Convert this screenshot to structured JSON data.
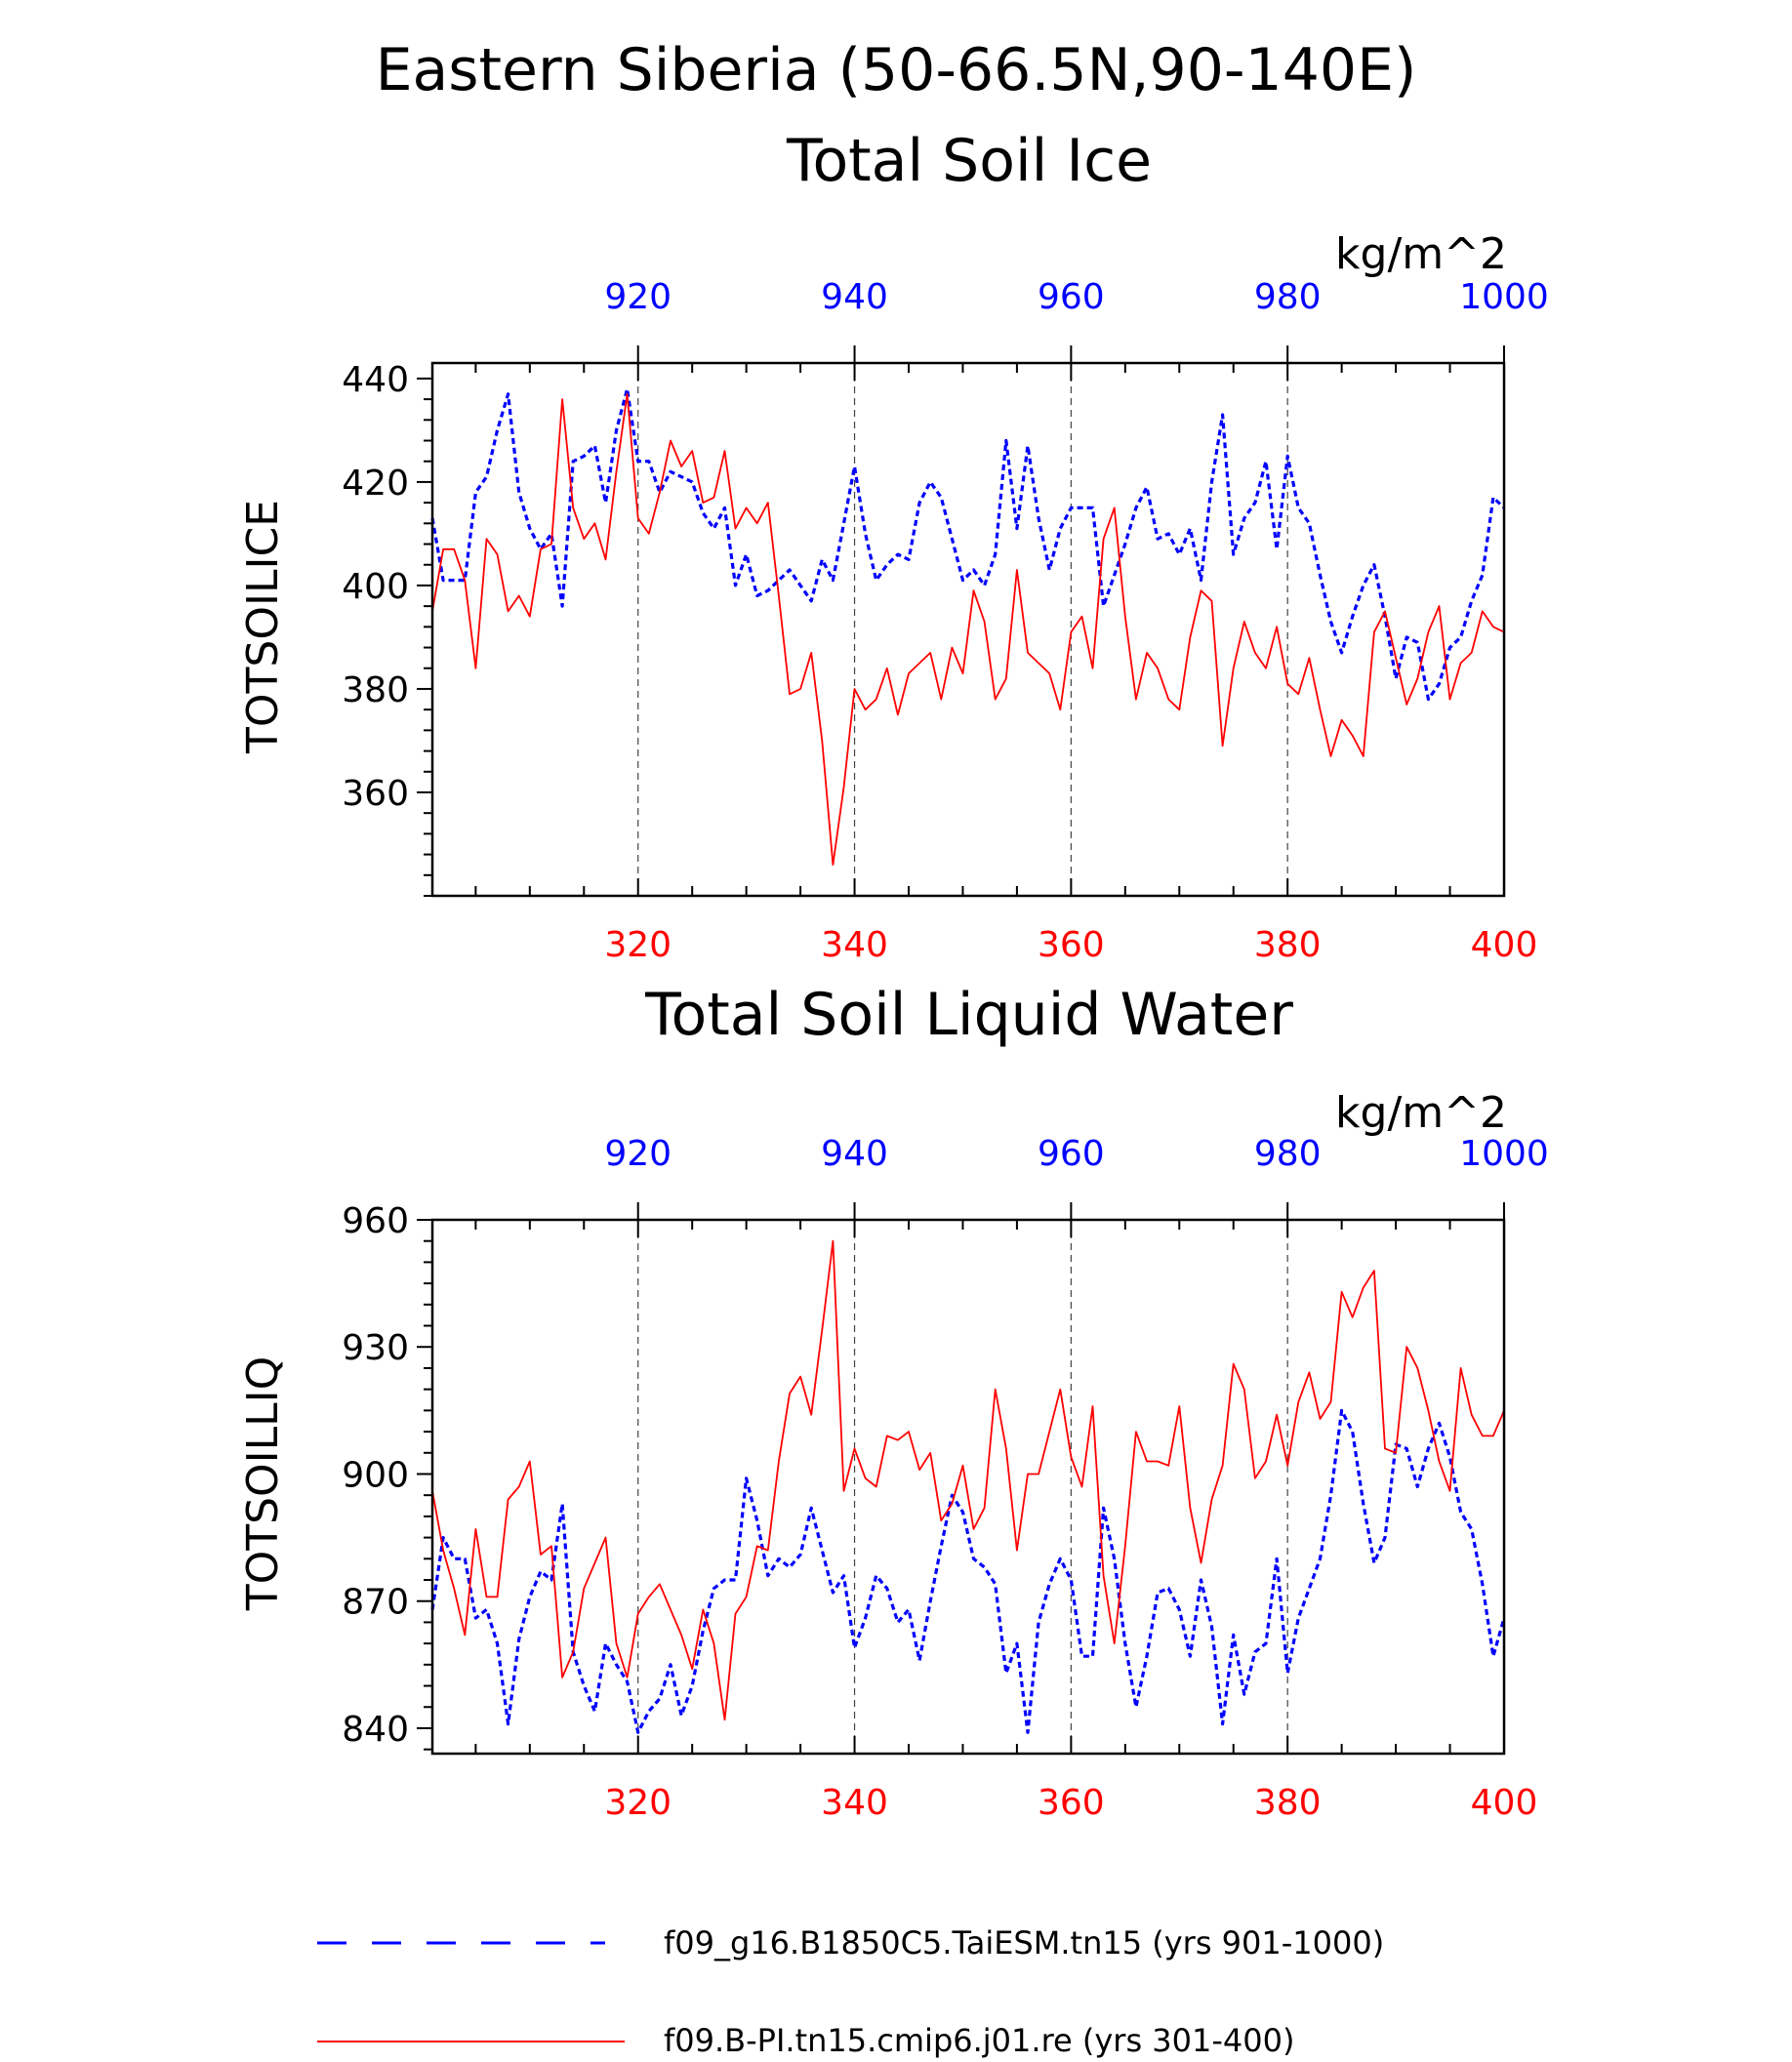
{
  "figure": {
    "title": "Eastern Siberia (50-66.5N,90-140E)",
    "legend": [
      {
        "label": "f09_g16.B1850C5.TaiESM.tn15 (yrs 901-1000)",
        "color": "#0000ff",
        "style": "dashed"
      },
      {
        "label": "f09.B-PI.tn15.cmip6.j01.re (yrs 301-400)",
        "color": "#ff0000",
        "style": "solid"
      }
    ]
  },
  "chart_data": [
    {
      "type": "line",
      "title": "Total Soil Ice",
      "ylabel": "TOTSOILICE",
      "unit_label": "kg/m^2",
      "ylim": [
        340,
        443
      ],
      "yticks": [
        360,
        380,
        400,
        420,
        440
      ],
      "y_minor_step": 4,
      "bottom_axis": {
        "color": "#ff0000",
        "xlim": [
          301,
          400
        ],
        "ticks": [
          320,
          340,
          360,
          380,
          400
        ]
      },
      "top_axis": {
        "color": "#0000ff",
        "xlim": [
          901,
          1000
        ],
        "ticks": [
          920,
          940,
          960,
          980,
          1000
        ]
      },
      "vgrid": [
        320,
        340,
        360,
        380
      ],
      "series": [
        {
          "name": "f09_g16.B1850C5.TaiESM.tn15 (yrs 901-1000)",
          "axis": "top",
          "color": "#0000ff",
          "style": "dashed",
          "x_start": 901,
          "values": [
            413,
            401,
            401,
            401,
            418,
            421,
            430,
            437,
            418,
            411,
            407,
            410,
            396,
            424,
            425,
            427,
            416,
            430,
            438,
            424,
            424,
            418,
            422,
            421,
            420,
            414,
            411,
            415,
            400,
            406,
            398,
            399,
            401,
            403,
            400,
            397,
            405,
            401,
            412,
            423,
            410,
            401,
            404,
            406,
            405,
            416,
            420,
            417,
            409,
            401,
            403,
            400,
            406,
            428,
            411,
            427,
            413,
            403,
            411,
            415,
            415,
            415,
            396,
            402,
            408,
            415,
            419,
            409,
            410,
            406,
            411,
            401,
            420,
            433,
            406,
            413,
            416,
            424,
            407,
            425,
            415,
            412,
            402,
            393,
            387,
            394,
            400,
            404,
            394,
            382,
            390,
            389,
            378,
            381,
            388,
            390,
            397,
            402,
            417,
            415
          ]
        },
        {
          "name": "f09.B-PI.tn15.cmip6.j01.re (yrs 301-400)",
          "axis": "bottom",
          "color": "#ff0000",
          "style": "solid",
          "x_start": 301,
          "values": [
            395,
            407,
            407,
            401,
            384,
            409,
            406,
            395,
            398,
            394,
            407,
            408,
            436,
            415,
            409,
            412,
            405,
            422,
            437,
            413,
            410,
            418,
            428,
            423,
            426,
            416,
            417,
            426,
            411,
            415,
            412,
            416,
            398,
            379,
            380,
            387,
            370,
            346,
            361,
            380,
            376,
            378,
            384,
            375,
            383,
            385,
            387,
            378,
            388,
            383,
            399,
            393,
            378,
            382,
            403,
            387,
            385,
            383,
            376,
            391,
            394,
            384,
            409,
            415,
            394,
            378,
            387,
            384,
            378,
            376,
            390,
            399,
            397,
            369,
            384,
            393,
            387,
            384,
            392,
            381,
            379,
            386,
            376,
            367,
            374,
            371,
            367,
            391,
            395,
            386,
            377,
            382,
            391,
            396,
            378,
            385,
            387,
            395,
            392,
            391
          ]
        }
      ]
    },
    {
      "type": "line",
      "title": "Total Soil Liquid Water",
      "ylabel": "TOTSOILLIQ",
      "unit_label": "kg/m^2",
      "ylim": [
        834,
        960
      ],
      "yticks": [
        840,
        870,
        900,
        930,
        960
      ],
      "y_minor_step": 5,
      "bottom_axis": {
        "color": "#ff0000",
        "xlim": [
          301,
          400
        ],
        "ticks": [
          320,
          340,
          360,
          380,
          400
        ]
      },
      "top_axis": {
        "color": "#0000ff",
        "xlim": [
          901,
          1000
        ],
        "ticks": [
          920,
          940,
          960,
          980,
          1000
        ]
      },
      "vgrid": [
        320,
        340,
        360,
        380
      ],
      "series": [
        {
          "name": "f09_g16.B1850C5.TaiESM.tn15 (yrs 901-1000)",
          "axis": "top",
          "color": "#0000ff",
          "style": "dashed",
          "x_start": 901,
          "values": [
            868,
            885,
            880,
            880,
            866,
            868,
            860,
            841,
            861,
            871,
            877,
            875,
            893,
            858,
            850,
            844,
            860,
            855,
            851,
            839,
            844,
            847,
            855,
            843,
            850,
            863,
            873,
            875,
            875,
            899,
            889,
            876,
            880,
            878,
            881,
            892,
            882,
            872,
            876,
            859,
            866,
            876,
            873,
            865,
            868,
            856,
            870,
            883,
            895,
            891,
            880,
            878,
            874,
            853,
            860,
            839,
            865,
            874,
            880,
            875,
            857,
            857,
            892,
            880,
            860,
            845,
            857,
            872,
            873,
            868,
            857,
            875,
            864,
            841,
            862,
            848,
            858,
            860,
            880,
            853,
            866,
            873,
            880,
            895,
            915,
            910,
            893,
            879,
            885,
            907,
            906,
            897,
            906,
            912,
            904,
            891,
            887,
            874,
            857,
            866
          ]
        },
        {
          "name": "f09.B-PI.tn15.cmip6.j01.re (yrs 301-400)",
          "axis": "bottom",
          "color": "#ff0000",
          "style": "solid",
          "x_start": 301,
          "values": [
            896,
            882,
            873,
            862,
            887,
            871,
            871,
            894,
            897,
            903,
            881,
            883,
            852,
            858,
            873,
            879,
            885,
            860,
            852,
            867,
            871,
            874,
            868,
            862,
            854,
            868,
            860,
            842,
            867,
            871,
            883,
            882,
            903,
            919,
            923,
            914,
            934,
            955,
            896,
            906,
            899,
            897,
            909,
            908,
            910,
            901,
            905,
            889,
            893,
            902,
            887,
            892,
            920,
            906,
            882,
            900,
            900,
            910,
            920,
            904,
            897,
            916,
            876,
            860,
            883,
            910,
            903,
            903,
            902,
            916,
            892,
            879,
            894,
            902,
            926,
            920,
            899,
            903,
            914,
            902,
            917,
            924,
            913,
            917,
            943,
            937,
            944,
            948,
            906,
            905,
            930,
            925,
            915,
            903,
            896,
            925,
            914,
            909,
            909,
            915
          ]
        }
      ]
    }
  ]
}
